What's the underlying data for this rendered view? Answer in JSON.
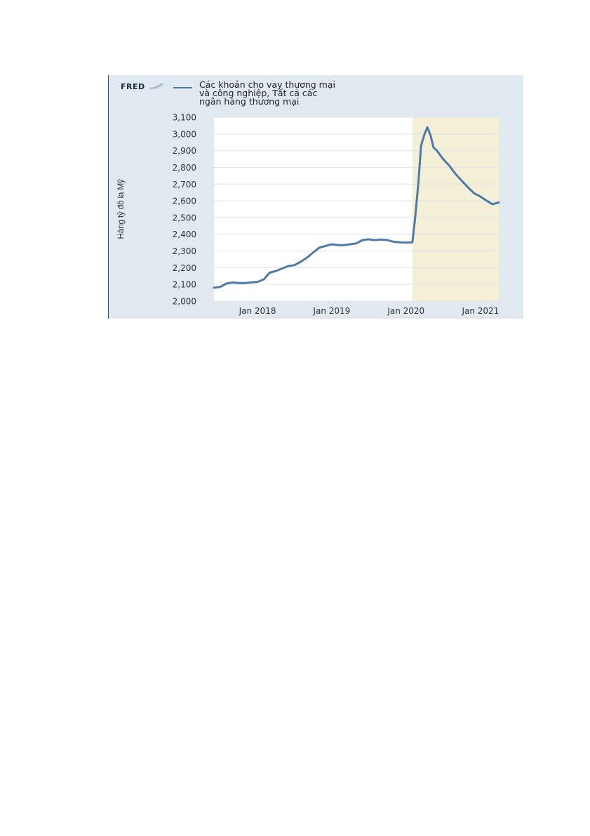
{
  "brand": "FRED",
  "chart_data": {
    "type": "line",
    "title": "",
    "ylabel": "Hàng tỷ đô la Mỹ",
    "xlabel": "",
    "ylim": [
      2000,
      3100
    ],
    "xlim": [
      "2017-06-01",
      "2021-04-01"
    ],
    "yticks": [
      "2,000",
      "2,100",
      "2,200",
      "2,300",
      "2,400",
      "2,500",
      "2,600",
      "2,700",
      "2,800",
      "2,900",
      "3,000",
      "3,100"
    ],
    "xticks": [
      {
        "label": "Jan 2018",
        "date": "2018-01-01"
      },
      {
        "label": "Jan 2019",
        "date": "2019-01-01"
      },
      {
        "label": "Jan 2020",
        "date": "2020-01-01"
      },
      {
        "label": "Jan 2021",
        "date": "2021-01-01"
      }
    ],
    "grid": true,
    "recession_shading": [
      "2020-02-01",
      "2021-04-01"
    ],
    "colors": {
      "line": "#4f79a6",
      "recession": "#f3f0d7",
      "grid": "#e2e2e2"
    },
    "series": [
      {
        "name": "Các khoản cho vay thương mại và công nghiệp, Tất cả các ngân hàng thương mại",
        "x": [
          "2017-06-01",
          "2017-07-01",
          "2017-08-01",
          "2017-09-01",
          "2017-10-01",
          "2017-11-01",
          "2017-12-01",
          "2018-01-01",
          "2018-02-01",
          "2018-03-01",
          "2018-04-01",
          "2018-05-01",
          "2018-06-01",
          "2018-07-01",
          "2018-08-01",
          "2018-09-01",
          "2018-10-01",
          "2018-11-01",
          "2018-12-01",
          "2019-01-01",
          "2019-02-01",
          "2019-03-01",
          "2019-04-01",
          "2019-05-01",
          "2019-06-01",
          "2019-07-01",
          "2019-08-01",
          "2019-09-01",
          "2019-10-01",
          "2019-11-01",
          "2019-12-01",
          "2020-01-01",
          "2020-02-01",
          "2020-02-15",
          "2020-03-01",
          "2020-03-15",
          "2020-04-01",
          "2020-04-15",
          "2020-05-01",
          "2020-05-15",
          "2020-06-01",
          "2020-07-01",
          "2020-08-01",
          "2020-09-01",
          "2020-10-01",
          "2020-11-01",
          "2020-12-01",
          "2021-01-01",
          "2021-02-01",
          "2021-03-01",
          "2021-04-01"
        ],
        "y": [
          2080,
          2085,
          2105,
          2112,
          2108,
          2108,
          2112,
          2115,
          2130,
          2170,
          2180,
          2195,
          2210,
          2215,
          2235,
          2260,
          2290,
          2320,
          2330,
          2340,
          2335,
          2335,
          2340,
          2345,
          2365,
          2370,
          2365,
          2368,
          2365,
          2355,
          2352,
          2350,
          2352,
          2500,
          2700,
          2930,
          3000,
          3040,
          2990,
          2920,
          2900,
          2850,
          2810,
          2760,
          2720,
          2680,
          2645,
          2625,
          2600,
          2580,
          2590
        ]
      }
    ]
  }
}
